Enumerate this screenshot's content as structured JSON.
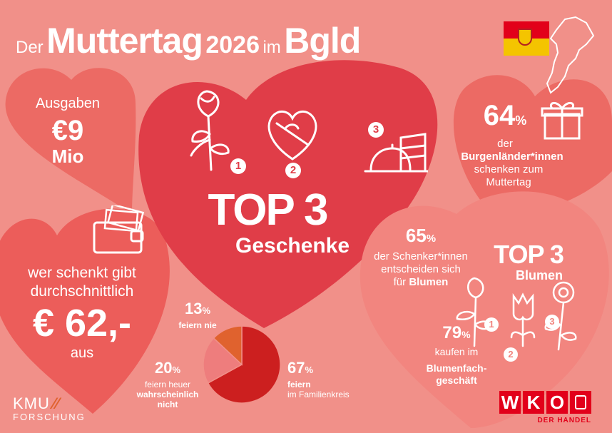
{
  "title": {
    "prefix": "Der",
    "main": "Muttertag",
    "year": "2026",
    "in": "im",
    "region": "Bgld"
  },
  "spending": {
    "label": "Ausgaben",
    "amount": "€9",
    "unit": "Mio"
  },
  "average": {
    "line1": "wer schenkt gibt",
    "line2": "durchschnittlich",
    "amount": "€ 62,-",
    "suffix": "aus"
  },
  "top3_gifts": {
    "heading": "TOP 3",
    "subheading": "Geschenke",
    "ranks": [
      "1",
      "2",
      "3"
    ]
  },
  "gifting_share": {
    "value": "64",
    "unit": "%",
    "line1": "der",
    "line2": "Burgenländer*innen",
    "line3": "schenken zum",
    "line4": "Muttertag"
  },
  "flowers": {
    "value": "65",
    "unit": "%",
    "line1": "der Schenker*innen",
    "line2": "entscheiden sich",
    "line3_prefix": "für",
    "line3_bold": "Blumen",
    "heading": "TOP 3",
    "subheading": "Blumen",
    "ranks": [
      "1",
      "2",
      "3"
    ]
  },
  "florist": {
    "value": "79",
    "unit": "%",
    "line1": "kaufen im",
    "line2": "Blumenfach-",
    "line3": "geschäft"
  },
  "celebration": {
    "slices": [
      {
        "label": "feiern im Familienkreis",
        "value": 67,
        "color": "#cc1f1f"
      },
      {
        "label": "feiern heuer wahrscheinlich nicht",
        "value": 20,
        "color": "#ee7d7d"
      },
      {
        "label": "feiern nie",
        "value": 13,
        "color": "#e0622e"
      }
    ],
    "never": {
      "value": "13",
      "unit": "%",
      "text": "feiern nie"
    },
    "maybe": {
      "value": "20",
      "unit": "%",
      "line1": "feiern heuer",
      "line2": "wahrscheinlich",
      "line3": "nicht"
    },
    "family": {
      "value": "67",
      "unit": "%",
      "line1": "feiern",
      "line2": "im Familienkreis"
    }
  },
  "logos": {
    "kmu_line1": "KMU",
    "kmu_line2": "FORSCHUNG",
    "wko_letters": [
      "W",
      "K",
      "O"
    ],
    "wko_sub": "DER HANDEL"
  },
  "colors": {
    "background": "#f19089",
    "heart_main": "#e03d48",
    "heart_side": "#ec6a64",
    "heart_light": "#f2857f",
    "wko_red": "#e2001a"
  }
}
